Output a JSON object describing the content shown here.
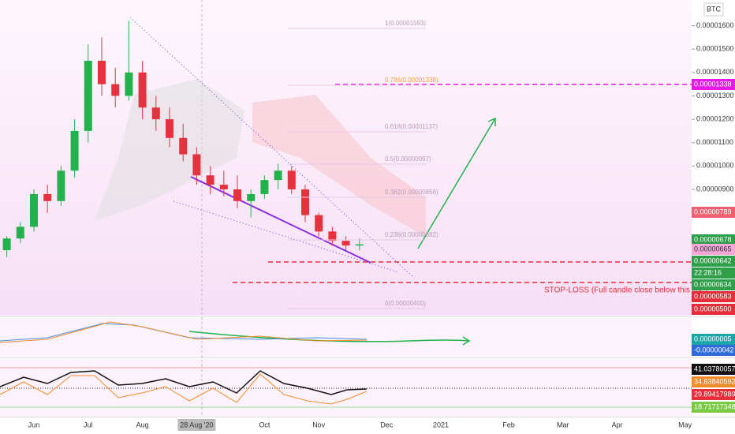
{
  "chart_data": {
    "type": "candlestick",
    "currency": "BTC",
    "categories": [
      null,
      null,
      "Jun",
      null,
      null,
      null,
      "Jul",
      null,
      null,
      null,
      "Aug",
      null,
      null,
      null,
      "28 Aug '20",
      null,
      null,
      null,
      null,
      "Oct",
      null,
      null,
      null,
      "Nov",
      null,
      null,
      null,
      null,
      "Dec",
      null,
      null,
      null,
      "2021",
      null,
      null,
      null,
      null,
      "Feb",
      null,
      null,
      null,
      "Mar",
      null,
      null,
      null,
      "Apr",
      null,
      null,
      null,
      null,
      "May"
    ],
    "open": [
      6.4e-06,
      6.9e-06,
      7.4e-06,
      8.8e-06,
      8.5e-06,
      9.8e-06,
      1.15e-05,
      1.45e-05,
      1.35e-05,
      1.3e-05,
      1.4e-05,
      1.25e-05,
      1.2e-05,
      1.12e-05,
      1.05e-05,
      9.6e-06,
      9.2e-06,
      9e-06,
      8.5e-06,
      8.8e-06,
      9.4e-06,
      9.8e-06,
      9e-06,
      7.9e-06,
      7.2e-06,
      6.8e-06,
      6.6e-06,
      null,
      null,
      null,
      null,
      null,
      null,
      null,
      null,
      null,
      null,
      null,
      null,
      null,
      null,
      null,
      null,
      null,
      null,
      null,
      null,
      null,
      null,
      null,
      null
    ],
    "high": [
      7e-06,
      7.6e-06,
      9e-06,
      9.2e-06,
      1e-05,
      1.2e-05,
      1.52e-05,
      1.55e-05,
      1.42e-05,
      1.62e-05,
      1.45e-05,
      1.3e-05,
      1.25e-05,
      1.18e-05,
      1.08e-05,
      1e-05,
      9.8e-06,
      9.6e-06,
      9e-06,
      9.6e-06,
      1.01e-05,
      1e-05,
      9.2e-06,
      8e-06,
      7.4e-06,
      7e-06,
      6.9e-06,
      null,
      null,
      null,
      null,
      null,
      null,
      null,
      null,
      null,
      null,
      null,
      null,
      null,
      null,
      null,
      null,
      null,
      null,
      null,
      null,
      null,
      null,
      null,
      null
    ],
    "low": [
      6.1e-06,
      6.7e-06,
      7.2e-06,
      8e-06,
      8.3e-06,
      9.5e-06,
      1.1e-05,
      1.3e-05,
      1.25e-05,
      1.28e-05,
      1.2e-05,
      1.15e-05,
      1.08e-05,
      1.02e-05,
      9.2e-06,
      8.8e-06,
      8.7e-06,
      8.2e-06,
      7.8e-06,
      8.6e-06,
      9e-06,
      8.8e-06,
      7.6e-06,
      7e-06,
      6.6e-06,
      6.4e-06,
      6.4e-06,
      null,
      null,
      null,
      null,
      null,
      null,
      null,
      null,
      null,
      null,
      null,
      null,
      null,
      null,
      null,
      null,
      null,
      null,
      null,
      null,
      null,
      null,
      null,
      null
    ],
    "close": [
      6.9e-06,
      7.4e-06,
      8.8e-06,
      8.5e-06,
      9.8e-06,
      1.15e-05,
      1.45e-05,
      1.35e-05,
      1.3e-05,
      1.4e-05,
      1.25e-05,
      1.2e-05,
      1.12e-05,
      1.05e-05,
      9.6e-06,
      9.2e-06,
      9e-06,
      8.5e-06,
      8.8e-06,
      9.4e-06,
      9.8e-06,
      9e-06,
      7.9e-06,
      7.2e-06,
      6.8e-06,
      6.6e-06,
      6.65e-06,
      null,
      null,
      null,
      null,
      null,
      null,
      null,
      null,
      null,
      null,
      null,
      null,
      null,
      null,
      null,
      null,
      null,
      null,
      null,
      null,
      null,
      null,
      null,
      null
    ],
    "up_color": "#22b24c",
    "down_color": "#e5323e",
    "ylim": [
      3.6e-06,
      1.71e-05
    ],
    "yticks": [
      {
        "value": 9e-06,
        "label": "0.00000900"
      },
      {
        "value": 1e-05,
        "label": "0.00001000"
      },
      {
        "value": 1.1e-05,
        "label": "0.00001100"
      },
      {
        "value": 1.2e-05,
        "label": "0.00001200"
      },
      {
        "value": 1.3e-05,
        "label": "0.00001300"
      },
      {
        "value": 1.4e-05,
        "label": "0.00001400"
      },
      {
        "value": 1.5e-05,
        "label": "0.00001500"
      },
      {
        "value": 1.6e-05,
        "label": "0.00001600"
      }
    ],
    "fib_levels": [
      "1(0.00001593)",
      "0.786(0.00001338)",
      "0.618(0.00001137)",
      "0.5(0.00000997)",
      "0.382(0.00000856)",
      "0.236(0.00000682)",
      "0(0.00000400)"
    ],
    "price_tags": [
      {
        "text": "0.00001338",
        "color": "#e619e6"
      },
      {
        "text": "0.00000789",
        "color": "#f06070"
      },
      {
        "text": "0.00000678",
        "color": "#2e9e48"
      },
      {
        "text": "0.00000665",
        "color": "#f4a6d8"
      },
      {
        "text": "0.00000642",
        "color": "#2e9e48"
      },
      {
        "text": "22:28:16",
        "color": "#2e9e48"
      },
      {
        "text": "0.00000634",
        "color": "#2e9e48"
      },
      {
        "text": "0.00000583",
        "color": "#e52e3a"
      },
      {
        "text": "0.00000500",
        "color": "#e52e3a"
      }
    ],
    "stop_loss_label": "STOP-LOSS (Full candle close below this line)",
    "macd_tags": [
      {
        "text": "0.00000005",
        "color": "#1aa6a6"
      },
      {
        "text": "-0.00000042",
        "color": "#2f6bd8"
      }
    ],
    "rsi_tags": [
      {
        "text": "41.03780057",
        "color": "#111111"
      },
      {
        "text": "34.63840592",
        "color": "#f28c28"
      },
      {
        "text": "29.89417989",
        "color": "#e52e3a"
      },
      {
        "text": "18.71717348",
        "color": "#7ac943"
      }
    ]
  }
}
